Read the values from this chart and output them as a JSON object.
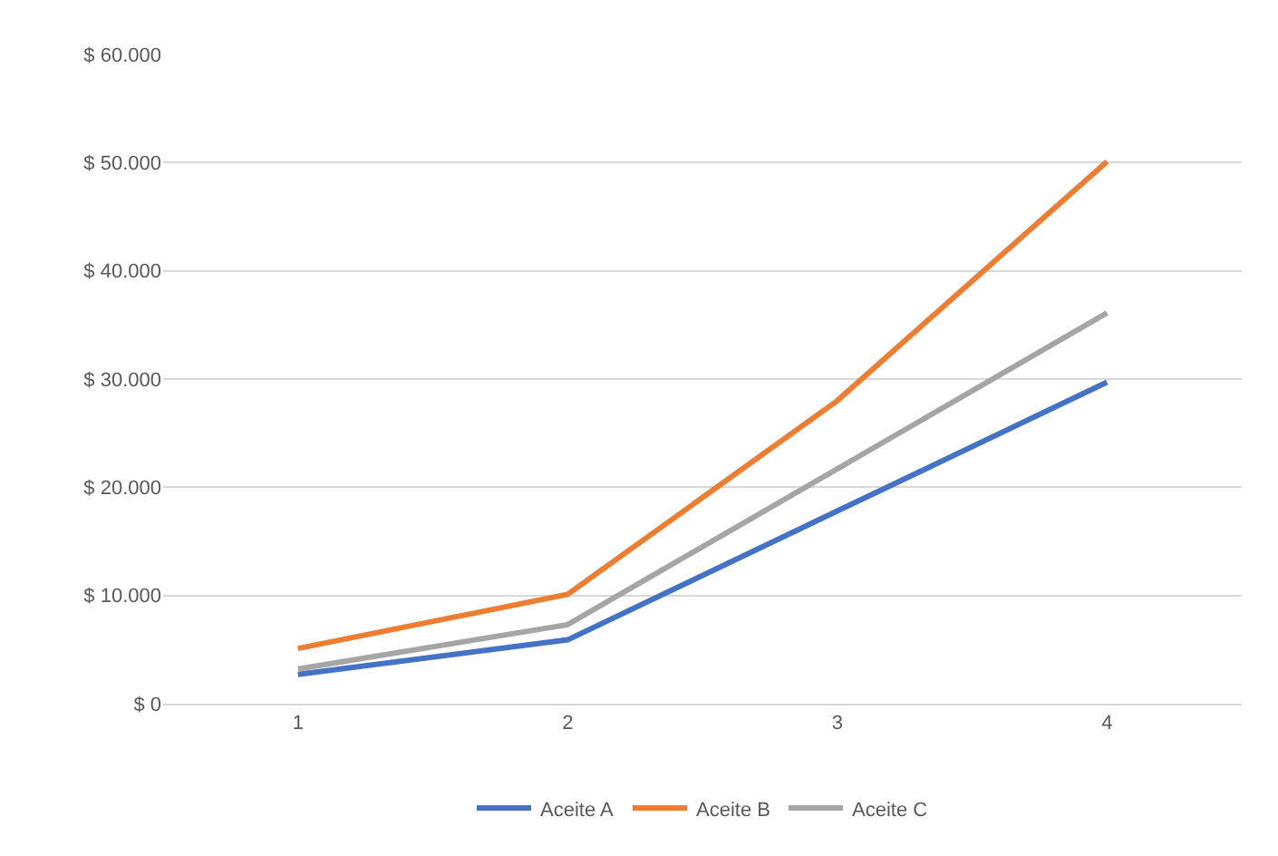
{
  "chart_data": {
    "type": "line",
    "categories": [
      "1",
      "2",
      "3",
      "4"
    ],
    "series": [
      {
        "name": "Aceite A",
        "color": "#4472c4",
        "values": [
          2700,
          5900,
          17800,
          29700
        ]
      },
      {
        "name": "Aceite B",
        "color": "#ed7d31",
        "values": [
          5100,
          10100,
          28000,
          50100
        ]
      },
      {
        "name": "Aceite C",
        "color": "#a5a5a5",
        "values": [
          3200,
          7300,
          21700,
          36100
        ]
      }
    ],
    "ylim": [
      0,
      60000
    ],
    "yticks": [
      {
        "value": 0,
        "label": "$ 0"
      },
      {
        "value": 10000,
        "label": "$ 10.000"
      },
      {
        "value": 20000,
        "label": "$ 20.000"
      },
      {
        "value": 30000,
        "label": "$ 30.000"
      },
      {
        "value": 40000,
        "label": "$ 40.000"
      },
      {
        "value": 50000,
        "label": "$ 50.000"
      },
      {
        "value": 60000,
        "label": "$ 60.000"
      }
    ],
    "grid": "y",
    "legend": "bottom",
    "marker": "none",
    "line_style": "solid"
  }
}
